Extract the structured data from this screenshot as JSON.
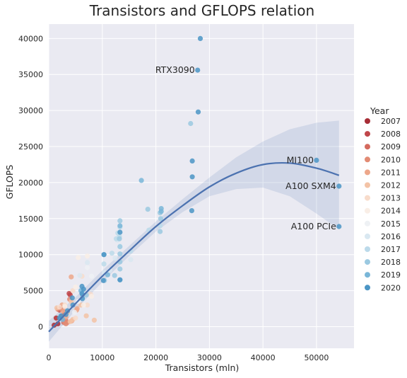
{
  "chart_data": {
    "type": "scatter",
    "title": "Transistors and GFLOPS relation",
    "xlabel": "Transistors (mln)",
    "ylabel": "GFLOPS",
    "xlim": [
      0,
      57000
    ],
    "ylim": [
      -3000,
      42000
    ],
    "xticks": [
      0,
      10000,
      20000,
      30000,
      40000,
      50000
    ],
    "yticks": [
      0,
      5000,
      10000,
      15000,
      20000,
      25000,
      30000,
      35000,
      40000
    ],
    "grid": true,
    "background": "#eaeaf2",
    "legend": {
      "title": "Year",
      "placement": "right",
      "entries": [
        "2007",
        "2008",
        "2009",
        "2010",
        "2011",
        "2012",
        "2013",
        "2014",
        "2015",
        "2016",
        "2017",
        "2018",
        "2019",
        "2020"
      ],
      "colors": [
        "#a72d36",
        "#c0474a",
        "#d46a5e",
        "#e28b74",
        "#eda78a",
        "#f3c3a6",
        "#f8dccb",
        "#f9eee6",
        "#eef1f4",
        "#d9e8f1",
        "#bcdaea",
        "#9bc9e1",
        "#79b6d8",
        "#4b95c5"
      ]
    },
    "series": [
      {
        "name": "2007",
        "x": [
          1000,
          1400,
          1700
        ],
        "y": [
          200,
          1200,
          400
        ]
      },
      {
        "name": "2008",
        "x": [
          1400,
          2000,
          2200,
          2500,
          3800,
          4000
        ],
        "y": [
          1200,
          2300,
          2500,
          2600,
          4600,
          4400
        ]
      },
      {
        "name": "2009",
        "x": [
          2500,
          3000,
          2800,
          3200
        ],
        "y": [
          1500,
          2000,
          600,
          800
        ]
      },
      {
        "name": "2010",
        "x": [
          2800,
          3000,
          3200,
          2500,
          3500,
          3900,
          1700
        ],
        "y": [
          2700,
          600,
          400,
          1200,
          600,
          3800,
          2400
        ]
      },
      {
        "name": "2011",
        "x": [
          2600,
          3200,
          4300,
          5200,
          5300,
          4200,
          2500
        ],
        "y": [
          2200,
          1300,
          800,
          2300,
          2500,
          6900,
          3000
        ]
      },
      {
        "name": "2012",
        "x": [
          3500,
          4200,
          4500,
          6000,
          8500,
          7000,
          4000,
          1500
        ],
        "y": [
          2000,
          3500,
          1000,
          3000,
          900,
          1500,
          700,
          2600
        ]
      },
      {
        "name": "2013",
        "x": [
          4500,
          6200,
          7200,
          7800,
          5000,
          3000,
          2000
        ],
        "y": [
          5000,
          7000,
          3000,
          4500,
          1200,
          3000,
          2700
        ]
      },
      {
        "name": "2014",
        "x": [
          5000,
          7200,
          8000,
          6500,
          3000,
          5500
        ],
        "y": [
          5500,
          9800,
          4200,
          3000,
          2800,
          9600
        ]
      },
      {
        "name": "2015",
        "x": [
          7200,
          8000,
          6500,
          5500,
          4800
        ],
        "y": [
          8200,
          7000,
          4500,
          3500,
          2000
        ]
      },
      {
        "name": "2016",
        "x": [
          7200,
          12400,
          12800,
          13300,
          10400,
          11400,
          15300,
          5800,
          6400
        ],
        "y": [
          8900,
          9500,
          12000,
          11200,
          7500,
          7800,
          9300,
          7100,
          3900
        ]
      },
      {
        "name": "2017",
        "x": [
          12600,
          12900,
          13300,
          13200,
          15300,
          18700,
          20800,
          11800,
          10300,
          6200
        ],
        "y": [
          12200,
          13000,
          13800,
          12500,
          10500,
          13400,
          14000,
          10200,
          8700,
          4900
        ]
      },
      {
        "name": "2018",
        "x": [
          13300,
          18500,
          20800,
          20900,
          20800,
          13200,
          13300,
          13300,
          13300,
          13300,
          12300,
          10400,
          7000,
          26500
        ],
        "y": [
          14700,
          16300,
          15800,
          15000,
          13200,
          12200,
          11100,
          10100,
          9000,
          8000,
          7100,
          6400,
          4400,
          28200
        ]
      },
      {
        "name": "2019",
        "x": [
          13300,
          17300,
          21000,
          21000,
          10300,
          11000,
          13300,
          6000,
          6300,
          2600
        ],
        "y": [
          14000,
          20300,
          16400,
          16000,
          10000,
          7200,
          6500,
          5000,
          4400,
          1000
        ]
      },
      {
        "name": "2020",
        "x": [
          28300,
          27800,
          27900,
          26800,
          26800,
          26700,
          50000,
          54200,
          54200,
          10300,
          10200,
          13300,
          13300,
          6200,
          6200,
          6300,
          6500,
          4500,
          4400,
          3500,
          3200,
          2300,
          2000
        ],
        "y": [
          40000,
          35600,
          29800,
          23000,
          20800,
          16100,
          23100,
          19500,
          13900,
          10000,
          6400,
          13100,
          6500,
          5600,
          4600,
          3900,
          5200,
          3000,
          4000,
          2200,
          1700,
          1500,
          1200
        ]
      }
    ],
    "fit": {
      "label": "",
      "x": [
        0,
        5000,
        10000,
        15000,
        20000,
        25000,
        30000,
        35000,
        40000,
        45000,
        50000,
        54200
      ],
      "y": [
        -700,
        3200,
        7000,
        10500,
        13900,
        16800,
        19400,
        21300,
        22500,
        22700,
        22000,
        21000
      ],
      "ci_upper": [
        800,
        4100,
        7800,
        11200,
        14600,
        17700,
        20700,
        23500,
        25700,
        27400,
        28300,
        28600
      ],
      "ci_lower": [
        -2100,
        2300,
        6200,
        9800,
        13200,
        15900,
        18100,
        19100,
        19300,
        18100,
        15700,
        13500
      ]
    },
    "annotations": [
      {
        "text": "RTX3090",
        "x": 27800,
        "y": 35600
      },
      {
        "text": "MI100",
        "x": 50000,
        "y": 23100
      },
      {
        "text": "A100 SXM4",
        "x": 54200,
        "y": 19500
      },
      {
        "text": "A100 PCIe",
        "x": 54200,
        "y": 13900
      }
    ],
    "fit_color": "#4c72b0",
    "ci_color": "#4c72b0"
  }
}
